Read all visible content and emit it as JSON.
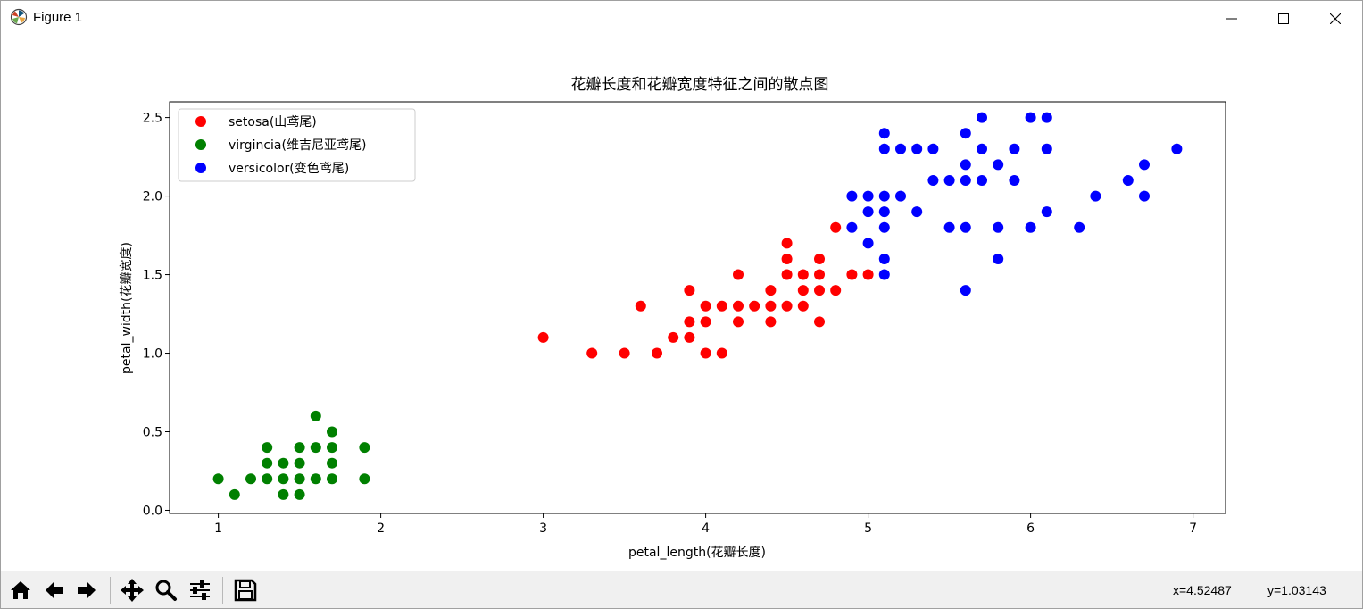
{
  "window": {
    "title": "Figure 1",
    "icon": "matplotlib-logo-icon",
    "controls": [
      "minimize-icon",
      "maximize-icon",
      "close-icon"
    ]
  },
  "toolbar": {
    "buttons": [
      "home-icon",
      "back-arrow-icon",
      "forward-arrow-icon",
      "pan-move-icon",
      "zoom-magnifier-icon",
      "configure-subplots-icon",
      "save-disk-icon"
    ],
    "coord_x": "x=4.52487",
    "coord_y": "y=1.03143"
  },
  "chart_data": {
    "type": "scatter",
    "title": "花瓣长度和花瓣宽度特征之间的散点图",
    "xlabel": "petal_length(花瓣长度)",
    "ylabel": "petal_width(花瓣宽度)",
    "xlim": [
      0.7,
      7.2
    ],
    "ylim": [
      -0.02,
      2.6
    ],
    "xticks": [
      1,
      2,
      3,
      4,
      5,
      6,
      7
    ],
    "yticks": [
      0.0,
      0.5,
      1.0,
      1.5,
      2.0,
      2.5
    ],
    "xtick_labels": [
      "1",
      "2",
      "3",
      "4",
      "5",
      "6",
      "7"
    ],
    "ytick_labels": [
      "0.0",
      "0.5",
      "1.0",
      "1.5",
      "2.0",
      "2.5"
    ],
    "grid": false,
    "legend_position": "top-left",
    "series": [
      {
        "name": "setosa(山鸢尾)",
        "color": "#ff0000",
        "points": [
          [
            3.0,
            1.1
          ],
          [
            3.3,
            1.0
          ],
          [
            3.5,
            1.0
          ],
          [
            3.6,
            1.3
          ],
          [
            3.7,
            1.0
          ],
          [
            3.8,
            1.1
          ],
          [
            3.9,
            1.4
          ],
          [
            3.9,
            1.2
          ],
          [
            3.9,
            1.1
          ],
          [
            4.0,
            1.3
          ],
          [
            4.0,
            1.2
          ],
          [
            4.0,
            1.0
          ],
          [
            4.1,
            1.3
          ],
          [
            4.1,
            1.0
          ],
          [
            4.2,
            1.5
          ],
          [
            4.2,
            1.3
          ],
          [
            4.2,
            1.2
          ],
          [
            4.3,
            1.3
          ],
          [
            4.4,
            1.4
          ],
          [
            4.4,
            1.3
          ],
          [
            4.4,
            1.2
          ],
          [
            4.5,
            1.7
          ],
          [
            4.5,
            1.6
          ],
          [
            4.5,
            1.5
          ],
          [
            4.5,
            1.3
          ],
          [
            4.6,
            1.5
          ],
          [
            4.6,
            1.4
          ],
          [
            4.6,
            1.3
          ],
          [
            4.7,
            1.6
          ],
          [
            4.7,
            1.5
          ],
          [
            4.7,
            1.4
          ],
          [
            4.7,
            1.2
          ],
          [
            4.8,
            1.8
          ],
          [
            4.8,
            1.4
          ],
          [
            4.9,
            1.5
          ],
          [
            5.0,
            1.5
          ]
        ]
      },
      {
        "name": "virgincia(维吉尼亚鸢尾)",
        "color": "#008000",
        "points": [
          [
            1.0,
            0.2
          ],
          [
            1.1,
            0.1
          ],
          [
            1.2,
            0.2
          ],
          [
            1.3,
            0.4
          ],
          [
            1.3,
            0.3
          ],
          [
            1.3,
            0.2
          ],
          [
            1.4,
            0.3
          ],
          [
            1.4,
            0.2
          ],
          [
            1.4,
            0.1
          ],
          [
            1.5,
            0.4
          ],
          [
            1.5,
            0.3
          ],
          [
            1.5,
            0.2
          ],
          [
            1.5,
            0.1
          ],
          [
            1.6,
            0.6
          ],
          [
            1.6,
            0.4
          ],
          [
            1.6,
            0.2
          ],
          [
            1.7,
            0.5
          ],
          [
            1.7,
            0.4
          ],
          [
            1.7,
            0.3
          ],
          [
            1.7,
            0.2
          ],
          [
            1.9,
            0.4
          ],
          [
            1.9,
            0.2
          ]
        ]
      },
      {
        "name": "versicolor(变色鸢尾)",
        "color": "#0000ff",
        "points": [
          [
            4.9,
            2.0
          ],
          [
            4.9,
            1.8
          ],
          [
            5.0,
            2.0
          ],
          [
            5.0,
            1.9
          ],
          [
            5.0,
            1.7
          ],
          [
            5.1,
            2.4
          ],
          [
            5.1,
            2.3
          ],
          [
            5.1,
            2.0
          ],
          [
            5.1,
            1.9
          ],
          [
            5.1,
            1.8
          ],
          [
            5.1,
            1.6
          ],
          [
            5.1,
            1.5
          ],
          [
            5.2,
            2.3
          ],
          [
            5.2,
            2.0
          ],
          [
            5.3,
            2.3
          ],
          [
            5.3,
            1.9
          ],
          [
            5.4,
            2.3
          ],
          [
            5.4,
            2.1
          ],
          [
            5.5,
            2.1
          ],
          [
            5.5,
            1.8
          ],
          [
            5.6,
            2.4
          ],
          [
            5.6,
            2.2
          ],
          [
            5.6,
            2.1
          ],
          [
            5.6,
            1.8
          ],
          [
            5.6,
            1.4
          ],
          [
            5.7,
            2.5
          ],
          [
            5.7,
            2.3
          ],
          [
            5.7,
            2.1
          ],
          [
            5.8,
            2.2
          ],
          [
            5.8,
            1.8
          ],
          [
            5.8,
            1.6
          ],
          [
            5.9,
            2.3
          ],
          [
            5.9,
            2.1
          ],
          [
            6.0,
            2.5
          ],
          [
            6.0,
            1.8
          ],
          [
            6.1,
            2.5
          ],
          [
            6.1,
            2.3
          ],
          [
            6.1,
            1.9
          ],
          [
            6.3,
            1.8
          ],
          [
            6.4,
            2.0
          ],
          [
            6.6,
            2.1
          ],
          [
            6.7,
            2.2
          ],
          [
            6.7,
            2.0
          ],
          [
            6.9,
            2.3
          ]
        ]
      }
    ]
  }
}
